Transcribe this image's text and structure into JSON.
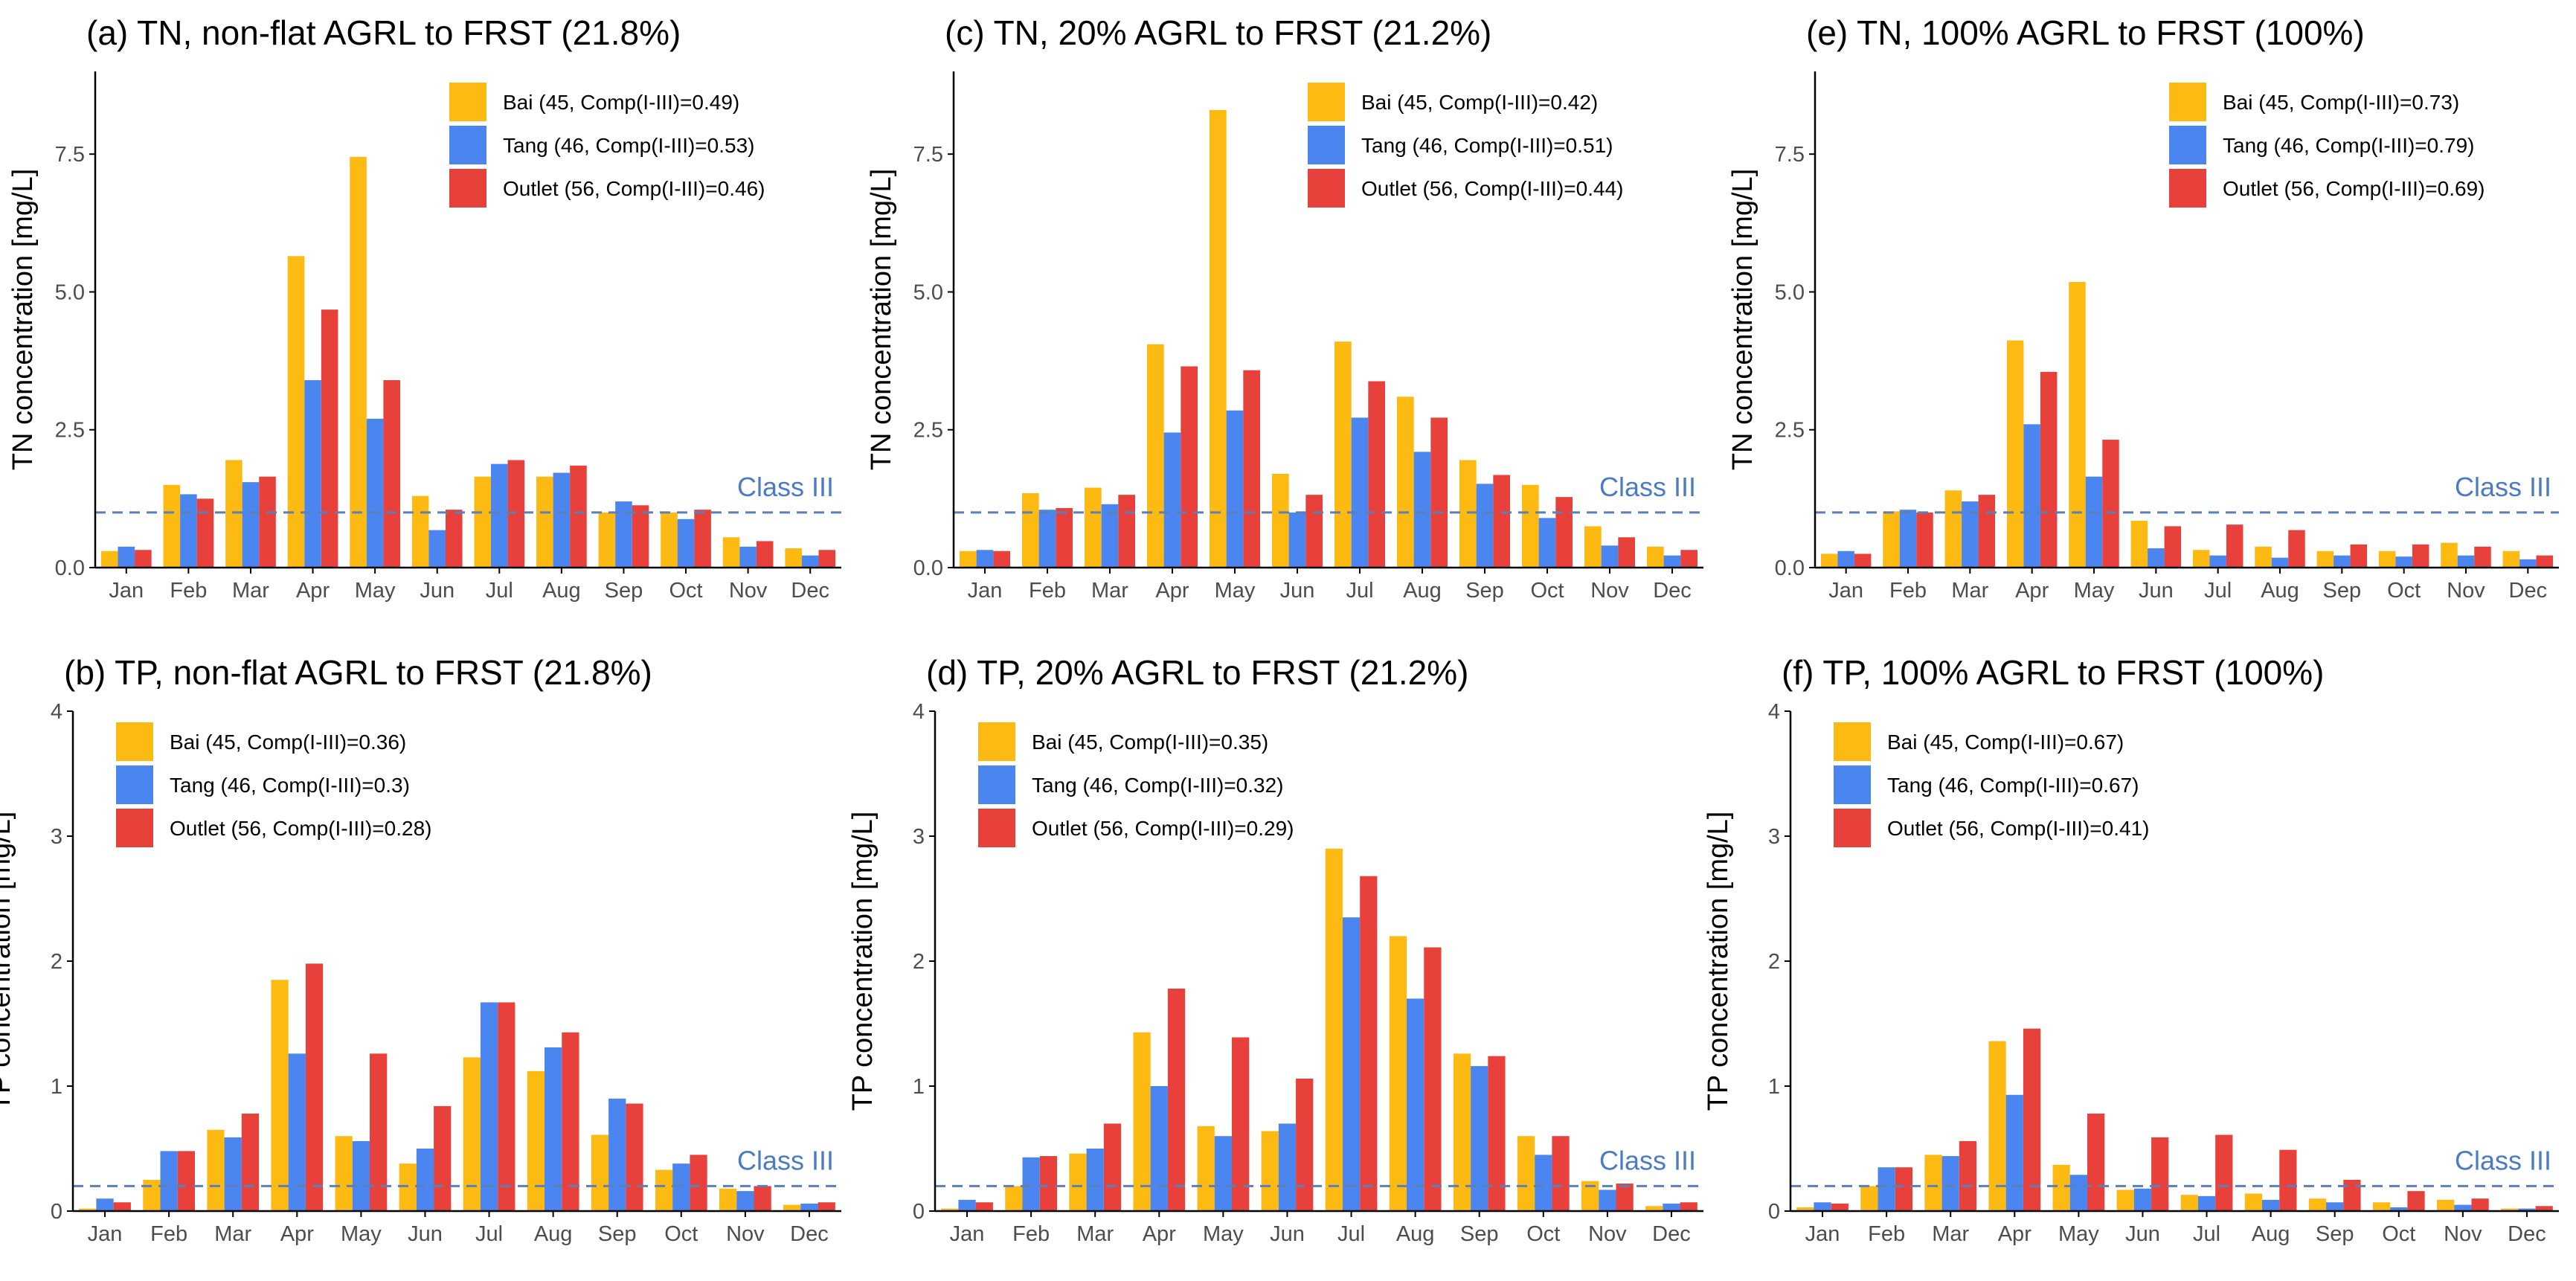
{
  "chart_data": [
    {
      "type": "bar",
      "title": "(a) TN, non-flat AGRL to FRST (21.8%)",
      "ylabel": "TN concentration [mg/L]",
      "xlabel": "",
      "ylim": [
        0,
        9
      ],
      "yticks": [
        0.0,
        2.5,
        5.0,
        7.5
      ],
      "ytick_labels": [
        "0.0",
        "2.5",
        "5.0",
        "7.5"
      ],
      "categories": [
        "Jan",
        "Feb",
        "Mar",
        "Apr",
        "May",
        "Jun",
        "Jul",
        "Aug",
        "Sep",
        "Oct",
        "Nov",
        "Dec"
      ],
      "legend_position": "top-right",
      "reference_line": {
        "label": "Class III",
        "value": 1.0
      },
      "series": [
        {
          "name": "Bai (45, Comp(I-III)=0.49)",
          "values": [
            0.3,
            1.5,
            1.95,
            5.65,
            7.45,
            1.3,
            1.65,
            1.65,
            1.0,
            1.0,
            0.55,
            0.35
          ]
        },
        {
          "name": "Tang (46, Comp(I-III)=0.53)",
          "values": [
            0.38,
            1.33,
            1.55,
            3.4,
            2.7,
            0.68,
            1.88,
            1.72,
            1.2,
            0.88,
            0.38,
            0.22
          ]
        },
        {
          "name": "Outlet (56, Comp(I-III)=0.46)",
          "values": [
            0.32,
            1.25,
            1.65,
            4.68,
            3.4,
            1.05,
            1.95,
            1.85,
            1.13,
            1.05,
            0.48,
            0.32
          ]
        }
      ]
    },
    {
      "type": "bar",
      "title": "(c) TN, 20% AGRL to FRST (21.2%)",
      "ylabel": "TN concentration [mg/L]",
      "xlabel": "",
      "ylim": [
        0,
        9
      ],
      "yticks": [
        0.0,
        2.5,
        5.0,
        7.5
      ],
      "ytick_labels": [
        "0.0",
        "2.5",
        "5.0",
        "7.5"
      ],
      "categories": [
        "Jan",
        "Feb",
        "Mar",
        "Apr",
        "May",
        "Jun",
        "Jul",
        "Aug",
        "Sep",
        "Oct",
        "Nov",
        "Dec"
      ],
      "legend_position": "top-right",
      "reference_line": {
        "label": "Class III",
        "value": 1.0
      },
      "series": [
        {
          "name": "Bai (45, Comp(I-III)=0.42)",
          "values": [
            0.3,
            1.35,
            1.45,
            4.05,
            8.3,
            1.7,
            4.1,
            3.1,
            1.95,
            1.5,
            0.75,
            0.38
          ]
        },
        {
          "name": "Tang (46, Comp(I-III)=0.51)",
          "values": [
            0.32,
            1.05,
            1.15,
            2.45,
            2.85,
            1.0,
            2.72,
            2.1,
            1.52,
            0.9,
            0.4,
            0.22
          ]
        },
        {
          "name": "Outlet (56, Comp(I-III)=0.44)",
          "values": [
            0.3,
            1.08,
            1.32,
            3.65,
            3.58,
            1.32,
            3.38,
            2.72,
            1.68,
            1.28,
            0.55,
            0.32
          ]
        }
      ]
    },
    {
      "type": "bar",
      "title": "(e) TN, 100% AGRL to FRST (100%)",
      "ylabel": "TN concentration [mg/L]",
      "xlabel": "",
      "ylim": [
        0,
        9
      ],
      "yticks": [
        0.0,
        2.5,
        5.0,
        7.5
      ],
      "ytick_labels": [
        "0.0",
        "2.5",
        "5.0",
        "7.5"
      ],
      "categories": [
        "Jan",
        "Feb",
        "Mar",
        "Apr",
        "May",
        "Jun",
        "Jul",
        "Aug",
        "Sep",
        "Oct",
        "Nov",
        "Dec"
      ],
      "legend_position": "top-right",
      "reference_line": {
        "label": "Class III",
        "value": 1.0
      },
      "series": [
        {
          "name": "Bai (45, Comp(I-III)=0.73)",
          "values": [
            0.25,
            1.02,
            1.4,
            4.12,
            5.18,
            0.85,
            0.32,
            0.38,
            0.3,
            0.3,
            0.45,
            0.3
          ]
        },
        {
          "name": "Tang (46, Comp(I-III)=0.79)",
          "values": [
            0.3,
            1.05,
            1.2,
            2.6,
            1.65,
            0.35,
            0.22,
            0.18,
            0.22,
            0.2,
            0.22,
            0.15
          ]
        },
        {
          "name": "Outlet (56, Comp(I-III)=0.69)",
          "values": [
            0.25,
            1.0,
            1.32,
            3.55,
            2.32,
            0.75,
            0.78,
            0.68,
            0.42,
            0.42,
            0.38,
            0.22
          ]
        }
      ]
    },
    {
      "type": "bar",
      "title": "(b) TP, non-flat AGRL to FRST (21.8%)",
      "ylabel": "TP concentration [mg/L]",
      "xlabel": "",
      "ylim": [
        0,
        4
      ],
      "yticks": [
        0,
        1,
        2,
        3,
        4
      ],
      "ytick_labels": [
        "0",
        "1",
        "2",
        "3",
        "4"
      ],
      "categories": [
        "Jan",
        "Feb",
        "Mar",
        "Apr",
        "May",
        "Jun",
        "Jul",
        "Aug",
        "Sep",
        "Oct",
        "Nov",
        "Dec"
      ],
      "legend_position": "top-left",
      "reference_line": {
        "label": "Class III",
        "value": 0.2
      },
      "series": [
        {
          "name": "Bai (45, Comp(I-III)=0.36)",
          "values": [
            0.02,
            0.25,
            0.65,
            1.85,
            0.6,
            0.38,
            1.23,
            1.12,
            0.61,
            0.33,
            0.18,
            0.05
          ]
        },
        {
          "name": "Tang (46, Comp(I-III)=0.3)",
          "values": [
            0.1,
            0.48,
            0.59,
            1.26,
            0.56,
            0.5,
            1.67,
            1.31,
            0.9,
            0.38,
            0.16,
            0.06
          ]
        },
        {
          "name": "Outlet (56, Comp(I-III)=0.28)",
          "values": [
            0.07,
            0.48,
            0.78,
            1.98,
            1.26,
            0.84,
            1.67,
            1.43,
            0.86,
            0.45,
            0.2,
            0.07
          ]
        }
      ]
    },
    {
      "type": "bar",
      "title": "(d) TP, 20% AGRL to FRST (21.2%)",
      "ylabel": "TP concentration [mg/L]",
      "xlabel": "",
      "ylim": [
        0,
        4
      ],
      "yticks": [
        0,
        1,
        2,
        3,
        4
      ],
      "ytick_labels": [
        "0",
        "1",
        "2",
        "3",
        "4"
      ],
      "categories": [
        "Jan",
        "Feb",
        "Mar",
        "Apr",
        "May",
        "Jun",
        "Jul",
        "Aug",
        "Sep",
        "Oct",
        "Nov",
        "Dec"
      ],
      "legend_position": "top-left",
      "reference_line": {
        "label": "Class III",
        "value": 0.2
      },
      "series": [
        {
          "name": "Bai (45, Comp(I-III)=0.35)",
          "values": [
            0.02,
            0.2,
            0.46,
            1.43,
            0.68,
            0.64,
            2.9,
            2.2,
            1.26,
            0.6,
            0.24,
            0.04
          ]
        },
        {
          "name": "Tang (46, Comp(I-III)=0.32)",
          "values": [
            0.09,
            0.43,
            0.5,
            1.0,
            0.6,
            0.7,
            2.35,
            1.7,
            1.16,
            0.45,
            0.17,
            0.06
          ]
        },
        {
          "name": "Outlet (56, Comp(I-III)=0.29)",
          "values": [
            0.07,
            0.44,
            0.7,
            1.78,
            1.39,
            1.06,
            2.68,
            2.11,
            1.24,
            0.6,
            0.22,
            0.07
          ]
        }
      ]
    },
    {
      "type": "bar",
      "title": "(f) TP, 100% AGRL to FRST (100%)",
      "ylabel": "TP concentration [mg/L]",
      "xlabel": "",
      "ylim": [
        0,
        4
      ],
      "yticks": [
        0,
        1,
        2,
        3,
        4
      ],
      "ytick_labels": [
        "0",
        "1",
        "2",
        "3",
        "4"
      ],
      "categories": [
        "Jan",
        "Feb",
        "Mar",
        "Apr",
        "May",
        "Jun",
        "Jul",
        "Aug",
        "Sep",
        "Oct",
        "Nov",
        "Dec"
      ],
      "legend_position": "top-left",
      "reference_line": {
        "label": "Class III",
        "value": 0.2
      },
      "series": [
        {
          "name": "Bai (45, Comp(I-III)=0.67)",
          "values": [
            0.03,
            0.2,
            0.45,
            1.36,
            0.37,
            0.17,
            0.13,
            0.14,
            0.1,
            0.07,
            0.09,
            0.02
          ]
        },
        {
          "name": "Tang (46, Comp(I-III)=0.67)",
          "values": [
            0.07,
            0.35,
            0.44,
            0.93,
            0.29,
            0.18,
            0.12,
            0.09,
            0.07,
            0.03,
            0.05,
            0.02
          ]
        },
        {
          "name": "Outlet (56, Comp(I-III)=0.41)",
          "values": [
            0.06,
            0.35,
            0.56,
            1.46,
            0.78,
            0.59,
            0.61,
            0.49,
            0.25,
            0.16,
            0.1,
            0.04
          ]
        }
      ]
    }
  ],
  "colors": {
    "bai": "#FDBA12",
    "tang": "#4B86F0",
    "outlet": "#E8403A",
    "reference_line": "#5C7FB8",
    "reference_label": "#4A7BC4",
    "axis": "#000000",
    "tick_label": "#4d4d4d"
  }
}
